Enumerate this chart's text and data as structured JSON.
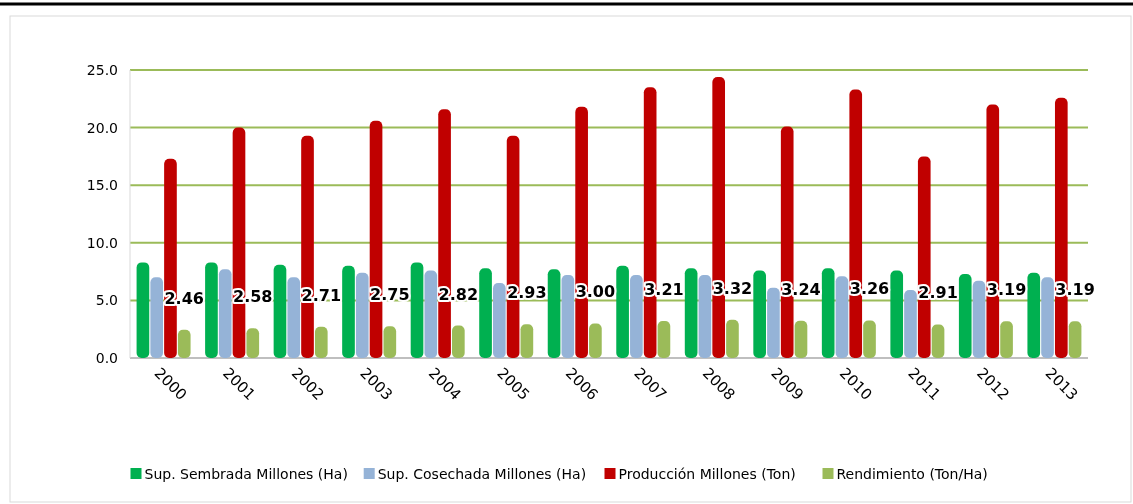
{
  "chart_data": {
    "type": "bar",
    "categories": [
      "2000",
      "2001",
      "2002",
      "2003",
      "2004",
      "2005",
      "2006",
      "2007",
      "2008",
      "2009",
      "2010",
      "2011",
      "2012",
      "2013"
    ],
    "series": [
      {
        "name": "Sup. Sembrada Millones (Ha)",
        "color": "#00b050",
        "values": [
          8.3,
          8.3,
          8.1,
          8.0,
          8.3,
          7.8,
          7.7,
          8.0,
          7.8,
          7.6,
          7.8,
          7.6,
          7.3,
          7.4
        ]
      },
      {
        "name": "Sup. Cosechada Millones (Ha)",
        "color": "#95b3d7",
        "values": [
          7.0,
          7.7,
          7.0,
          7.4,
          7.6,
          6.5,
          7.2,
          7.2,
          7.2,
          6.1,
          7.1,
          5.9,
          6.7,
          7.0
        ]
      },
      {
        "name": "Producción Millones (Ton)",
        "color": "#c00000",
        "values": [
          17.3,
          20.0,
          19.3,
          20.6,
          21.6,
          19.3,
          21.8,
          23.5,
          24.4,
          20.1,
          23.3,
          17.5,
          22.0,
          22.6
        ]
      },
      {
        "name": "Rendimiento (Ton/Ha)",
        "color": "#9bbb59",
        "values": [
          2.46,
          2.58,
          2.71,
          2.75,
          2.82,
          2.93,
          3.0,
          3.21,
          3.32,
          3.24,
          3.26,
          2.91,
          3.19,
          3.19
        ],
        "value_labels": [
          "2.46",
          "2.58",
          "2.71",
          "2.75",
          "2.82",
          "2.93",
          "3.00",
          "3.21",
          "3.32",
          "3.24",
          "3.26",
          "2.91",
          "3.19",
          "3.19"
        ]
      }
    ],
    "ylim": [
      0,
      25
    ],
    "yticks": [
      {
        "value": 0,
        "label": "0.0"
      },
      {
        "value": 5,
        "label": "5.0"
      },
      {
        "value": 10,
        "label": "10.0"
      },
      {
        "value": 15,
        "label": "15.0"
      },
      {
        "value": 20,
        "label": "20.0"
      },
      {
        "value": 25,
        "label": "25.0"
      }
    ],
    "grid": "y",
    "legend": "bottom"
  }
}
